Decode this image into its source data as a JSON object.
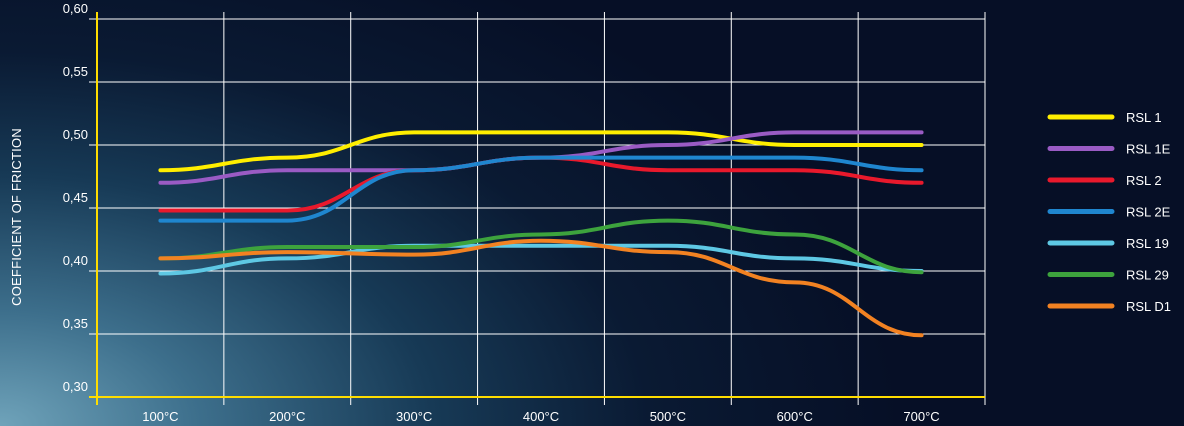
{
  "chart_data": {
    "type": "line",
    "title": "",
    "xlabel": "",
    "ylabel": "COEFFICIENT OF FRICTION",
    "categories": [
      "100°C",
      "200°C",
      "300°C",
      "400°C",
      "500°C",
      "600°C",
      "700°C"
    ],
    "yticks": [
      "0,30",
      "0,35",
      "0,40",
      "0,45",
      "0,50",
      "0,55",
      "0,60"
    ],
    "ylim": [
      0.3,
      0.6
    ],
    "grid": true,
    "legend_position": "right",
    "series": [
      {
        "name": "RSL 1",
        "color": "#ffee00",
        "values": [
          0.48,
          0.49,
          0.51,
          0.51,
          0.51,
          0.5,
          0.5
        ]
      },
      {
        "name": "RSL 1E",
        "color": "#9a5bc4",
        "values": [
          0.47,
          0.48,
          0.48,
          0.49,
          0.5,
          0.51,
          0.51
        ]
      },
      {
        "name": "RSL 2",
        "color": "#e8192c",
        "values": [
          0.448,
          0.448,
          0.48,
          0.49,
          0.48,
          0.48,
          0.47
        ]
      },
      {
        "name": "RSL 2E",
        "color": "#1f86cf",
        "values": [
          0.44,
          0.44,
          0.48,
          0.49,
          0.49,
          0.49,
          0.48
        ]
      },
      {
        "name": "RSL 19",
        "color": "#5ec8e4",
        "values": [
          0.398,
          0.41,
          0.42,
          0.42,
          0.42,
          0.41,
          0.4
        ]
      },
      {
        "name": "RSL 29",
        "color": "#3da33d",
        "values": [
          0.41,
          0.419,
          0.419,
          0.429,
          0.44,
          0.429,
          0.399
        ]
      },
      {
        "name": "RSL D1",
        "color": "#f28222",
        "values": [
          0.41,
          0.415,
          0.413,
          0.424,
          0.415,
          0.391,
          0.349
        ]
      }
    ]
  }
}
